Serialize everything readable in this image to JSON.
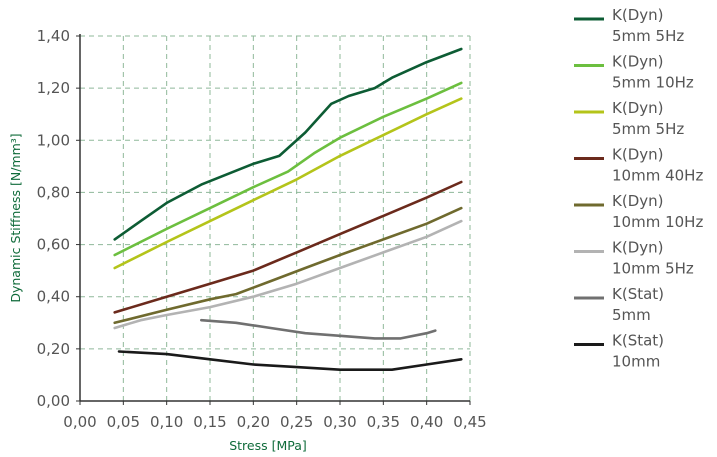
{
  "chart_data": {
    "type": "line",
    "xlabel": "Stress [MPa]",
    "ylabel": "Dynamic Stiffness [N/mm³]",
    "xlim": [
      0,
      0.45
    ],
    "ylim": [
      0,
      1.4
    ],
    "x_ticks": [
      0,
      0.05,
      0.1,
      0.15,
      0.2,
      0.25,
      0.3,
      0.35,
      0.4,
      0.45
    ],
    "x_tick_labels": [
      "0,00",
      "0,05",
      "0,10",
      "0,15",
      "0,20",
      "0,25",
      "0,30",
      "0,35",
      "0,40",
      "0,45"
    ],
    "y_ticks": [
      0,
      0.2,
      0.4,
      0.6,
      0.8,
      1.0,
      1.2,
      1.4
    ],
    "y_tick_labels": [
      "0,00",
      "0,20",
      "0,40",
      "0,60",
      "0,80",
      "1,00",
      "1,20",
      "1,40"
    ],
    "grid": true,
    "legend_position": "right",
    "series": [
      {
        "name": [
          "K(Dyn)",
          "5mm 5Hz"
        ],
        "color": "#0d5c34",
        "points": [
          [
            0.04,
            0.62
          ],
          [
            0.07,
            0.69
          ],
          [
            0.1,
            0.76
          ],
          [
            0.14,
            0.83
          ],
          [
            0.17,
            0.87
          ],
          [
            0.2,
            0.91
          ],
          [
            0.23,
            0.94
          ],
          [
            0.26,
            1.03
          ],
          [
            0.29,
            1.14
          ],
          [
            0.31,
            1.17
          ],
          [
            0.34,
            1.2
          ],
          [
            0.36,
            1.24
          ],
          [
            0.4,
            1.3
          ],
          [
            0.44,
            1.35
          ]
        ]
      },
      {
        "name": [
          "K(Dyn)",
          "5mm 10Hz"
        ],
        "color": "#6cbf3f",
        "points": [
          [
            0.04,
            0.56
          ],
          [
            0.1,
            0.66
          ],
          [
            0.15,
            0.74
          ],
          [
            0.2,
            0.82
          ],
          [
            0.24,
            0.88
          ],
          [
            0.27,
            0.95
          ],
          [
            0.3,
            1.01
          ],
          [
            0.35,
            1.09
          ],
          [
            0.4,
            1.16
          ],
          [
            0.44,
            1.22
          ]
        ]
      },
      {
        "name": [
          "K(Dyn)",
          "5mm 5Hz"
        ],
        "color": "#b4c41a",
        "points": [
          [
            0.04,
            0.51
          ],
          [
            0.1,
            0.61
          ],
          [
            0.15,
            0.69
          ],
          [
            0.2,
            0.77
          ],
          [
            0.25,
            0.85
          ],
          [
            0.3,
            0.94
          ],
          [
            0.35,
            1.02
          ],
          [
            0.4,
            1.1
          ],
          [
            0.44,
            1.16
          ]
        ]
      },
      {
        "name": [
          "K(Dyn)",
          "10mm 40Hz"
        ],
        "color": "#6b2a1c",
        "points": [
          [
            0.04,
            0.34
          ],
          [
            0.1,
            0.4
          ],
          [
            0.15,
            0.45
          ],
          [
            0.2,
            0.5
          ],
          [
            0.25,
            0.57
          ],
          [
            0.3,
            0.64
          ],
          [
            0.35,
            0.71
          ],
          [
            0.4,
            0.78
          ],
          [
            0.44,
            0.84
          ]
        ]
      },
      {
        "name": [
          "K(Dyn)",
          "10mm 10Hz"
        ],
        "color": "#6f6a2e",
        "points": [
          [
            0.04,
            0.3
          ],
          [
            0.1,
            0.35
          ],
          [
            0.15,
            0.39
          ],
          [
            0.18,
            0.41
          ],
          [
            0.22,
            0.46
          ],
          [
            0.26,
            0.51
          ],
          [
            0.3,
            0.56
          ],
          [
            0.35,
            0.62
          ],
          [
            0.4,
            0.68
          ],
          [
            0.44,
            0.74
          ]
        ]
      },
      {
        "name": [
          "K(Dyn)",
          "10mm 5Hz"
        ],
        "color": "#b3b3b3",
        "points": [
          [
            0.04,
            0.28
          ],
          [
            0.07,
            0.31
          ],
          [
            0.1,
            0.33
          ],
          [
            0.15,
            0.36
          ],
          [
            0.2,
            0.4
          ],
          [
            0.25,
            0.45
          ],
          [
            0.3,
            0.51
          ],
          [
            0.35,
            0.57
          ],
          [
            0.4,
            0.63
          ],
          [
            0.44,
            0.69
          ]
        ]
      },
      {
        "name": [
          "K(Stat)",
          "5mm"
        ],
        "color": "#707070",
        "points": [
          [
            0.14,
            0.31
          ],
          [
            0.18,
            0.3
          ],
          [
            0.22,
            0.28
          ],
          [
            0.26,
            0.26
          ],
          [
            0.3,
            0.25
          ],
          [
            0.34,
            0.24
          ],
          [
            0.37,
            0.24
          ],
          [
            0.4,
            0.26
          ],
          [
            0.41,
            0.27
          ]
        ]
      },
      {
        "name": [
          "K(Stat)",
          "10mm"
        ],
        "color": "#1a1a1a",
        "points": [
          [
            0.045,
            0.19
          ],
          [
            0.1,
            0.18
          ],
          [
            0.15,
            0.16
          ],
          [
            0.2,
            0.14
          ],
          [
            0.25,
            0.13
          ],
          [
            0.3,
            0.12
          ],
          [
            0.36,
            0.12
          ],
          [
            0.4,
            0.14
          ],
          [
            0.44,
            0.16
          ]
        ]
      }
    ]
  }
}
